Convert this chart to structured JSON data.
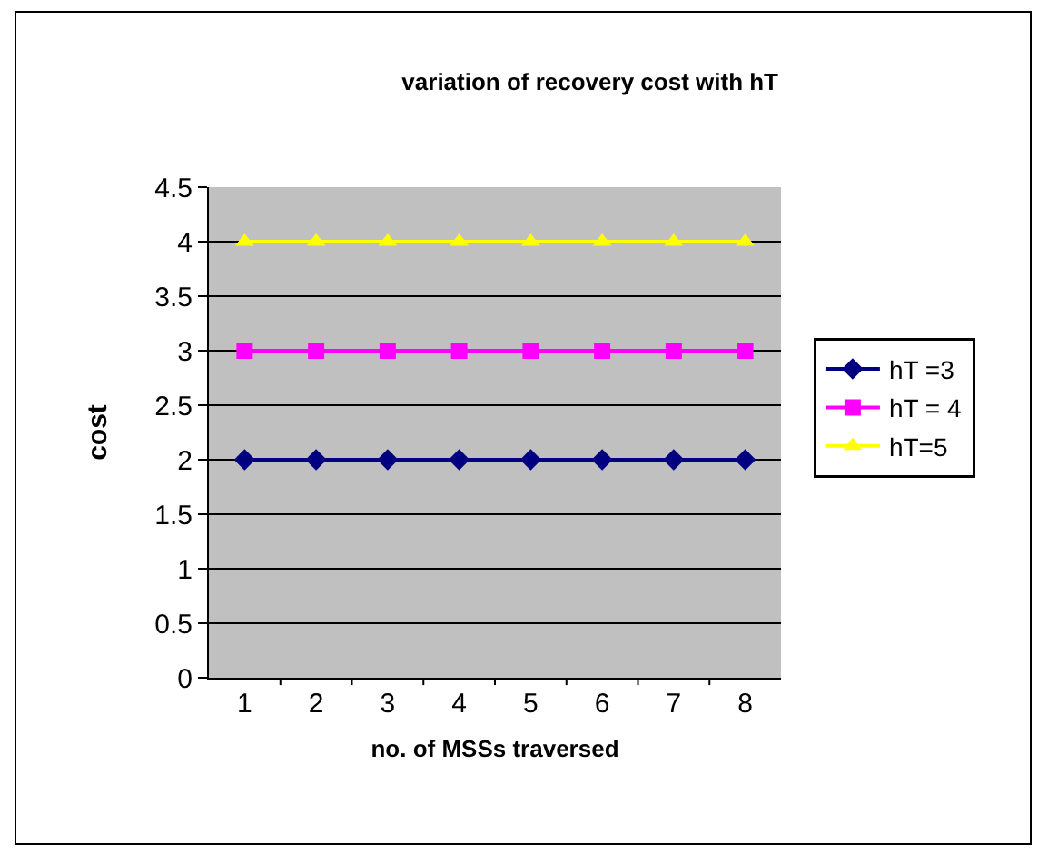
{
  "chart_data": {
    "type": "line",
    "title": "variation of recovery cost with hT",
    "xlabel": "no. of MSSs traversed",
    "ylabel": "cost",
    "categories": [
      "1",
      "2",
      "3",
      "4",
      "5",
      "6",
      "7",
      "8"
    ],
    "series": [
      {
        "name": "hT =3",
        "color": "#000080",
        "marker": "diamond",
        "values": [
          2,
          2,
          2,
          2,
          2,
          2,
          2,
          2
        ]
      },
      {
        "name": "hT = 4",
        "color": "#ff00ff",
        "marker": "square",
        "values": [
          3,
          3,
          3,
          3,
          3,
          3,
          3,
          3
        ]
      },
      {
        "name": "hT=5",
        "color": "#ffff00",
        "marker": "triangle",
        "values": [
          4,
          4,
          4,
          4,
          4,
          4,
          4,
          4
        ]
      }
    ],
    "ylim": [
      0,
      4.5
    ],
    "yticks": [
      0,
      0.5,
      1,
      1.5,
      2,
      2.5,
      3,
      3.5,
      4,
      4.5
    ],
    "grid": "y",
    "legend": "right"
  }
}
